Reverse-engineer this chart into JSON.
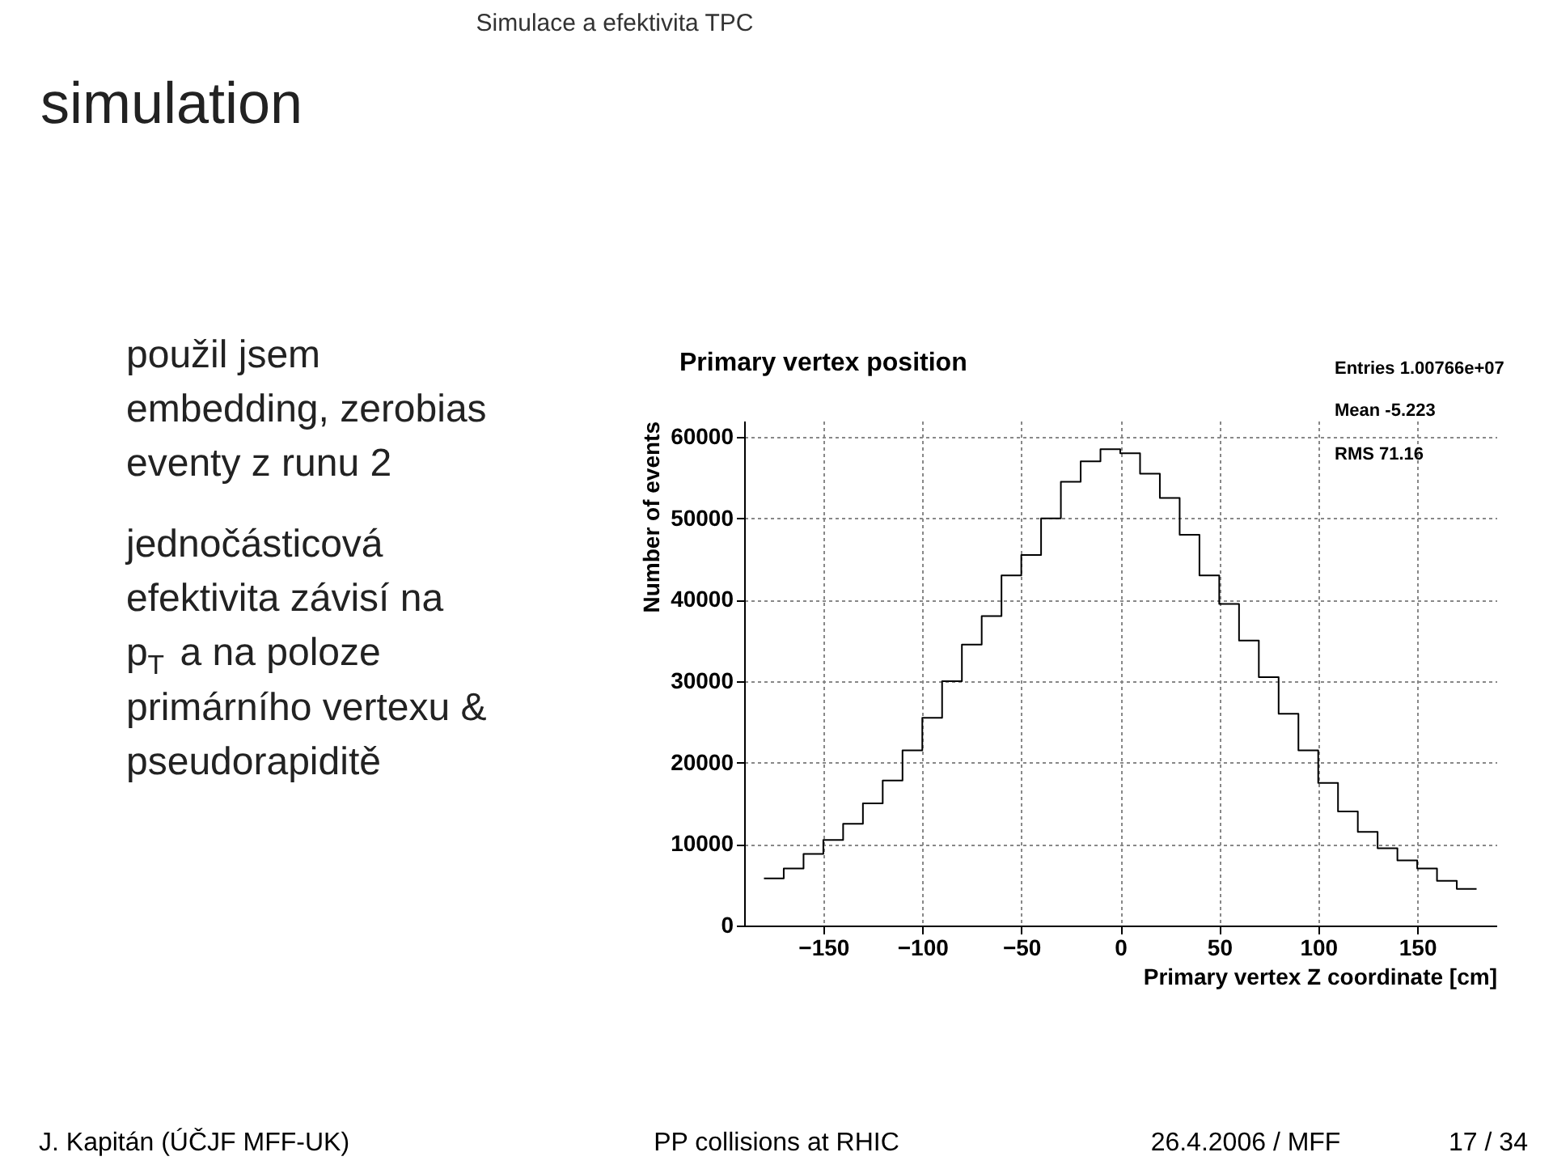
{
  "chart_data": {
    "type": "histogram",
    "title": "Primary vertex position",
    "xlabel": "Primary vertex Z coordinate [cm]",
    "ylabel": "Number of events",
    "bins": [
      -180,
      -170,
      -160,
      -150,
      -140,
      -130,
      -120,
      -110,
      -100,
      -90,
      -80,
      -70,
      -60,
      -50,
      -40,
      -30,
      -20,
      -10,
      0,
      10,
      20,
      30,
      40,
      50,
      60,
      70,
      80,
      90,
      100,
      110,
      120,
      130,
      140,
      150,
      160,
      170,
      180
    ],
    "values": [
      5800,
      7000,
      8800,
      10500,
      12500,
      15000,
      17800,
      21500,
      25500,
      30000,
      34500,
      38000,
      43000,
      45500,
      50000,
      54500,
      57000,
      58500,
      58000,
      55500,
      52500,
      48000,
      43000,
      39500,
      35000,
      30500,
      26000,
      21500,
      17500,
      14000,
      11500,
      9500,
      8000,
      7000,
      5500,
      4500
    ],
    "color": "#000000",
    "xlim": [
      -190,
      190
    ],
    "ylim": [
      0,
      62000
    ],
    "xticks": [
      -150,
      -100,
      -50,
      0,
      50,
      100,
      150
    ],
    "yticks": [
      0,
      10000,
      20000,
      30000,
      40000,
      50000,
      60000
    ],
    "grid": true,
    "annotations": [
      "Simulace a efektivita TPC",
      "simulation",
      "použil jsem embedding, zerobias eventy z runu 2",
      "jednočásticová efektivita závisí na p$_{T}$ a na poloze primárního vertexu & pseudorapiditě",
      "Entries 1.00766e+07",
      "Mean -5.223",
      "RMS 71.16",
      "J. Kapitán (ÚČJF MFF-UK)",
      "PP collisions at RHIC",
      "26.4.2006 / MFF",
      "17 / 34"
    ]
  }
}
